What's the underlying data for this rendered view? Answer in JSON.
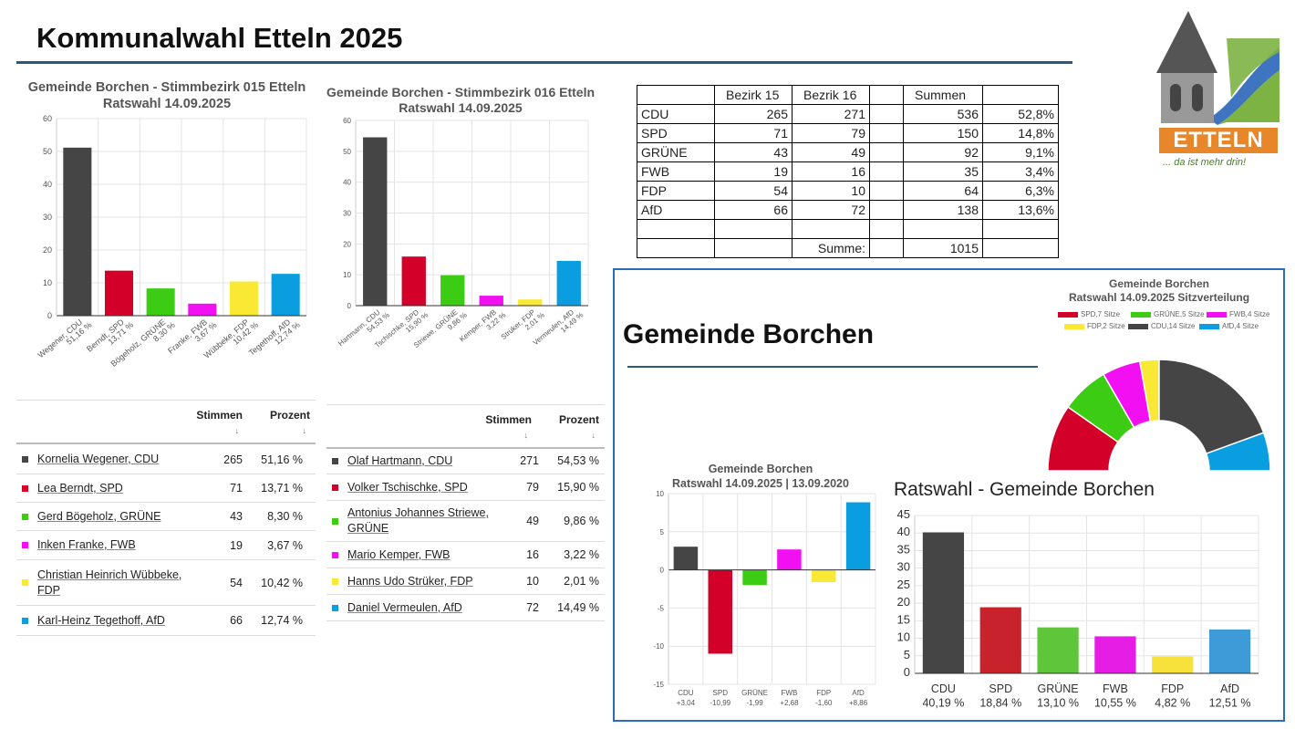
{
  "slide": {
    "title": "Kommunalwahl Etteln 2025",
    "section_title": "Gemeinde Borchen"
  },
  "logo": {
    "text": "ETTELN",
    "slogan": "... da ist mehr drin!"
  },
  "colors": {
    "CDU": "#454545",
    "SPD": "#d3002a",
    "GRÜNE": "#3ccc14",
    "FWB": "#f20ff2",
    "FDP": "#f9e934",
    "AfD": "#0a9ee0",
    "accent": "#2a6ebb",
    "logo_orange": "#e8872a",
    "logo_green": "#7cb342",
    "logo_blue": "#3f74c0"
  },
  "chart_data": [
    {
      "type": "bar",
      "title": "Gemeinde Borchen - Stimmbezirk 015 Etteln",
      "subtitle": "Ratswahl 14.09.2025",
      "ylim": [
        0,
        60
      ],
      "yticks": [
        0,
        10,
        20,
        30,
        40,
        50,
        60
      ],
      "grid": true,
      "categories": [
        "Wegener, CDU|51,16 %",
        "Berndt, SPD|13,71 %",
        "Bögeholz, GRÜNE|8,30 %",
        "Franke, FWB|3,67 %",
        "Wübbeke, FDP|10,42 %",
        "Tegethoff, AfD|12,74 %"
      ],
      "values": [
        51.16,
        13.71,
        8.3,
        3.67,
        10.42,
        12.74
      ],
      "parties": [
        "CDU",
        "SPD",
        "GRÜNE",
        "FWB",
        "FDP",
        "AfD"
      ]
    },
    {
      "type": "bar",
      "title": "Gemeinde Borchen - Stimmbezirk 016 Etteln",
      "subtitle": "Ratswahl 14.09.2025",
      "ylim": [
        0,
        60
      ],
      "yticks": [
        0,
        10,
        20,
        30,
        40,
        50,
        60
      ],
      "grid": true,
      "categories": [
        "Hartmann, CDU|54,53 %",
        "Tschischke, SPD|15,90 %",
        "Striewe, GRÜNE|9,86 %",
        "Kemper, FWB|3,22 %",
        "Strüker, FDP|2,01 %",
        "Vermeulen, AfD|14,49 %"
      ],
      "values": [
        54.53,
        15.9,
        9.86,
        3.22,
        2.01,
        14.49
      ],
      "parties": [
        "CDU",
        "SPD",
        "GRÜNE",
        "FWB",
        "FDP",
        "AfD"
      ]
    },
    {
      "type": "pie",
      "subtype": "half-donut",
      "title": "Gemeinde Borchen",
      "subtitle": "Ratswahl 14.09.2025 Sitzverteilung",
      "legend": "top",
      "categories": [
        "SPD",
        "GRÜNE",
        "FWB",
        "FDP",
        "CDU",
        "AfD"
      ],
      "values": [
        7,
        5,
        4,
        2,
        14,
        4
      ],
      "legend_labels": [
        "SPD,7 Sitze",
        "GRÜNE,5 Sitze",
        "FWB,4 Sitze",
        "FDP,2 Sitze",
        "CDU,14 Sitze",
        "AfD,4 Sitze"
      ]
    },
    {
      "type": "bar",
      "title": "Gemeinde Borchen",
      "subtitle": "Ratswahl 14.09.2025  | 13.09.2020",
      "ylim": [
        -15,
        10
      ],
      "yticks": [
        -15,
        -10,
        -5,
        0,
        5,
        10
      ],
      "grid": true,
      "categories": [
        "CDU|+3,04",
        "SPD|-10,99",
        "GRÜNE|-1,99",
        "FWB|+2,68",
        "FDP|-1,60",
        "AfD|+8,86"
      ],
      "values": [
        3.04,
        -10.99,
        -1.99,
        2.68,
        -1.6,
        8.86
      ],
      "parties": [
        "CDU",
        "SPD",
        "GRÜNE",
        "FWB",
        "FDP",
        "AfD"
      ]
    },
    {
      "type": "bar",
      "title": "Ratswahl - Gemeinde Borchen",
      "ylim": [
        0,
        45
      ],
      "yticks": [
        0,
        5,
        10,
        15,
        20,
        25,
        30,
        35,
        40,
        45
      ],
      "grid": true,
      "categories": [
        "CDU|40,19 %",
        "SPD|18,84 %",
        "GRÜNE|13,10 %",
        "FWB|10,55 %",
        "FDP|4,82 %",
        "AfD|12,51 %"
      ],
      "values": [
        40.19,
        18.84,
        13.1,
        10.55,
        4.82,
        12.51
      ],
      "parties": [
        "CDU",
        "SPD",
        "GRÜNE",
        "FWB",
        "FDP",
        "AfD"
      ],
      "colors": [
        "#454545",
        "#c8232c",
        "#5fc63c",
        "#e51de5",
        "#f7e23c",
        "#3f9bd8"
      ]
    }
  ],
  "table1": {
    "headers": [
      "Stimmen",
      "Prozent"
    ],
    "sort_icon": "↓",
    "rows": [
      {
        "party": "CDU",
        "name": "Kornelia Wegener, CDU",
        "votes": "265",
        "pct": "51,16 %"
      },
      {
        "party": "SPD",
        "name": "Lea Berndt, SPD",
        "votes": "71",
        "pct": "13,71 %"
      },
      {
        "party": "GRÜNE",
        "name": "Gerd Bögeholz, GRÜNE",
        "votes": "43",
        "pct": "8,30 %"
      },
      {
        "party": "FWB",
        "name": "Inken Franke, FWB",
        "votes": "19",
        "pct": "3,67 %"
      },
      {
        "party": "FDP",
        "name": "Christian Heinrich Wübbeke, FDP",
        "votes": "54",
        "pct": "10,42 %"
      },
      {
        "party": "AfD",
        "name": "Karl-Heinz Tegethoff, AfD",
        "votes": "66",
        "pct": "12,74 %"
      }
    ]
  },
  "table2": {
    "headers": [
      "Stimmen",
      "Prozent"
    ],
    "sort_icon": "↓",
    "rows": [
      {
        "party": "CDU",
        "name": "Olaf Hartmann, CDU",
        "votes": "271",
        "pct": "54,53 %"
      },
      {
        "party": "SPD",
        "name": "Volker Tschischke, SPD",
        "votes": "79",
        "pct": "15,90 %"
      },
      {
        "party": "GRÜNE",
        "name": "Antonius Johannes Striewe, GRÜNE",
        "votes": "49",
        "pct": "9,86 %"
      },
      {
        "party": "FWB",
        "name": "Mario Kemper, FWB",
        "votes": "16",
        "pct": "3,22 %"
      },
      {
        "party": "FDP",
        "name": "Hanns Udo Strüker, FDP",
        "votes": "10",
        "pct": "2,01 %"
      },
      {
        "party": "AfD",
        "name": "Daniel Vermeulen, AfD",
        "votes": "72",
        "pct": "14,49 %"
      }
    ]
  },
  "sheet": {
    "rows": [
      [
        "",
        "Bezirk 15",
        "Bezrik 16",
        "",
        "Summen",
        ""
      ],
      [
        "CDU",
        "265",
        "271",
        "",
        "536",
        "52,8%"
      ],
      [
        "SPD",
        "71",
        "79",
        "",
        "150",
        "14,8%"
      ],
      [
        "GRÜNE",
        "43",
        "49",
        "",
        "92",
        "9,1%"
      ],
      [
        "FWB",
        "19",
        "16",
        "",
        "35",
        "3,4%"
      ],
      [
        "FDP",
        "54",
        "10",
        "",
        "64",
        "6,3%"
      ],
      [
        "AfD",
        "66",
        "72",
        "",
        "138",
        "13,6%"
      ],
      [
        "",
        "",
        "",
        "",
        "",
        ""
      ],
      [
        "",
        "",
        "Summe:",
        "",
        "1015",
        ""
      ]
    ]
  }
}
